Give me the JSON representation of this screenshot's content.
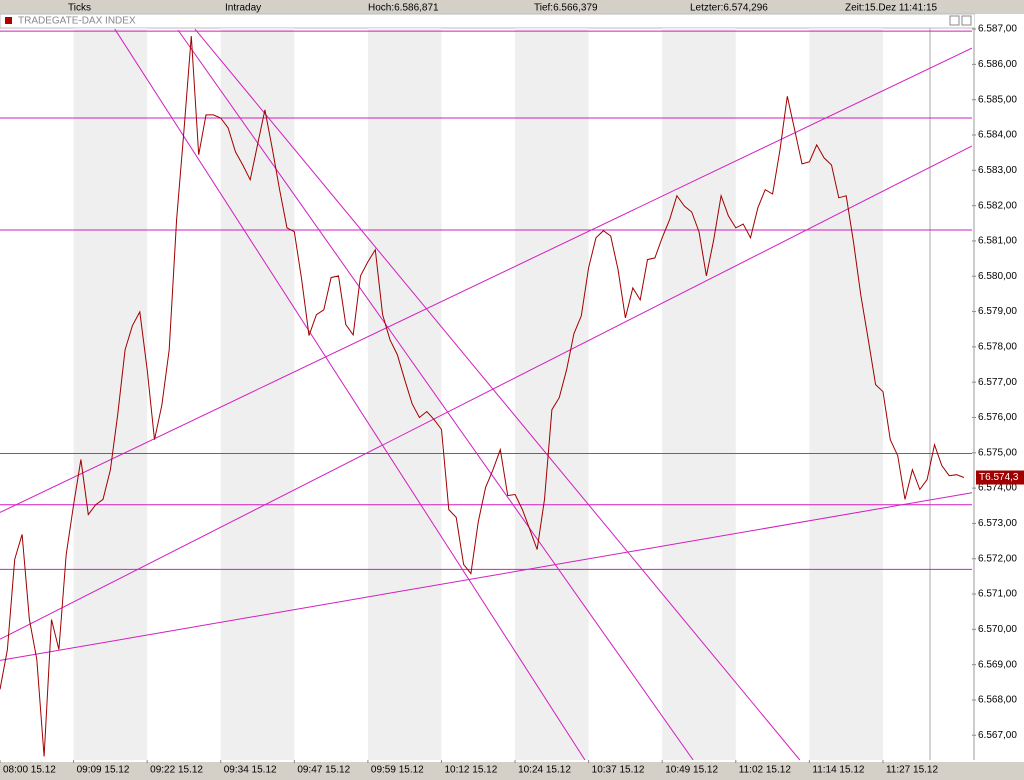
{
  "toolbar": [
    "Ticks",
    "Intraday",
    "Hoch:6.586,871",
    "Tief:6.566,379",
    "Letzter:6.574,296",
    "Zeit:15.Dez 11:41:15"
  ],
  "chart_data": {
    "type": "line",
    "title": "TRADEGATE-DAX INDEX",
    "last_label": "T6.574,3",
    "xlim": [
      0,
      132.1
    ],
    "ylim": [
      6566.3,
      6587.03
    ],
    "xticks": [
      {
        "value": 0,
        "label": "08:00 15.12"
      },
      {
        "value": 10,
        "label": "09:09 15.12"
      },
      {
        "value": 20,
        "label": "09:22 15.12"
      },
      {
        "value": 30,
        "label": "09:34 15.12"
      },
      {
        "value": 40,
        "label": "09:47 15.12"
      },
      {
        "value": 50,
        "label": "09:59 15.12"
      },
      {
        "value": 60,
        "label": "10:12 15.12"
      },
      {
        "value": 70,
        "label": "10:24 15.12"
      },
      {
        "value": 80,
        "label": "10:37 15.12"
      },
      {
        "value": 90,
        "label": "10:49 15.12"
      },
      {
        "value": 100,
        "label": "11:02 15.12"
      },
      {
        "value": 110,
        "label": "11:14 15.12"
      },
      {
        "value": 120,
        "label": "11:27 15.12"
      }
    ],
    "yticks": [
      {
        "value": 6567,
        "label": "6.567,00"
      },
      {
        "value": 6568,
        "label": "6.568,00"
      },
      {
        "value": 6569,
        "label": "6.569,00"
      },
      {
        "value": 6570,
        "label": "6.570,00"
      },
      {
        "value": 6571,
        "label": "6.571,00"
      },
      {
        "value": 6572,
        "label": "6.572,00"
      },
      {
        "value": 6573,
        "label": "6.573,00"
      },
      {
        "value": 6574,
        "label": "6.574,00"
      },
      {
        "value": 6575,
        "label": "6.575,00"
      },
      {
        "value": 6576,
        "label": "6.576,00"
      },
      {
        "value": 6577,
        "label": "6.577,00"
      },
      {
        "value": 6578,
        "label": "6.578,00"
      },
      {
        "value": 6579,
        "label": "6.579,00"
      },
      {
        "value": 6580,
        "label": "6.580,00"
      },
      {
        "value": 6581,
        "label": "6.581,00"
      },
      {
        "value": 6582,
        "label": "6.582,00"
      },
      {
        "value": 6583,
        "label": "6.583,00"
      },
      {
        "value": 6584,
        "label": "6.584,00"
      },
      {
        "value": 6585,
        "label": "6.585,00"
      },
      {
        "value": 6586,
        "label": "6.586,00"
      },
      {
        "value": 6587,
        "label": "6.587,00"
      }
    ],
    "x": [
      0,
      1,
      2,
      3,
      4,
      5,
      6,
      7,
      8,
      9,
      10,
      11,
      12,
      13,
      14,
      15,
      16,
      17,
      18,
      19,
      20,
      21,
      22,
      23,
      24,
      25,
      26,
      27,
      28,
      29,
      30,
      31,
      32,
      33,
      34,
      35,
      36,
      37,
      38,
      39,
      40,
      41,
      42,
      43,
      44,
      45,
      46,
      47,
      48,
      49,
      50,
      51,
      52,
      53,
      54,
      55,
      56,
      57,
      58,
      59,
      60,
      61,
      62,
      63,
      64,
      65,
      66,
      67,
      68,
      69,
      70,
      71,
      72,
      73,
      74,
      75,
      76,
      77,
      78,
      79,
      80,
      81,
      82,
      83,
      84,
      85,
      86,
      87,
      88,
      89,
      90,
      91,
      92,
      93,
      94,
      95,
      96,
      97,
      98,
      99,
      100,
      101,
      102,
      103,
      104,
      105,
      106,
      107,
      108,
      109,
      110,
      111,
      112,
      113,
      114,
      115,
      116,
      117,
      118,
      119,
      120,
      121,
      122,
      123,
      124,
      125,
      126,
      127,
      128,
      129,
      130,
      131
    ],
    "series": [
      {
        "color": "#a00000",
        "values": [
          6568.3,
          6569.43,
          6571.98,
          6572.69,
          6570.28,
          6569.15,
          6566.4,
          6570.28,
          6569.43,
          6572.12,
          6573.53,
          6574.81,
          6573.25,
          6573.53,
          6573.68,
          6574.52,
          6576.08,
          6577.92,
          6578.6,
          6578.99,
          6577.35,
          6575.37,
          6576.36,
          6577.92,
          6581.6,
          6584.14,
          6586.8,
          6583.44,
          6584.57,
          6584.57,
          6584.48,
          6584.2,
          6583.52,
          6583.15,
          6582.73,
          6583.72,
          6584.71,
          6583.63,
          6582.45,
          6581.37,
          6581.26,
          6579.9,
          6578.32,
          6578.91,
          6579.05,
          6579.96,
          6580.01,
          6578.63,
          6578.34,
          6580.01,
          6580.41,
          6580.75,
          6578.91,
          6578.2,
          6577.78,
          6577.07,
          6576.39,
          6576.0,
          6576.17,
          6575.94,
          6575.66,
          6573.39,
          6573.17,
          6571.84,
          6571.58,
          6573.05,
          6574.02,
          6574.52,
          6575.09,
          6573.79,
          6573.82,
          6573.39,
          6572.83,
          6572.26,
          6573.68,
          6576.22,
          6576.56,
          6577.35,
          6578.37,
          6578.88,
          6580.24,
          6581.09,
          6581.29,
          6581.14,
          6580.18,
          6578.82,
          6579.67,
          6579.33,
          6580.47,
          6580.52,
          6581.09,
          6581.6,
          6582.28,
          6581.99,
          6581.82,
          6581.26,
          6580.01,
          6581.03,
          6582.28,
          6581.71,
          6581.37,
          6581.48,
          6581.09,
          6581.94,
          6582.45,
          6582.33,
          6583.58,
          6585.1,
          6584.14,
          6583.18,
          6583.24,
          6583.72,
          6583.35,
          6583.15,
          6582.22,
          6582.28,
          6580.97,
          6579.45,
          6578.2,
          6576.93,
          6576.73,
          6575.37,
          6574.92,
          6573.68,
          6574.52,
          6573.96,
          6574.24,
          6575.23,
          6574.64,
          6574.35,
          6574.38,
          6574.3
        ]
      }
    ],
    "line_color": "#d21fbf",
    "hlines": [
      6586.94,
      6584.48,
      6581.31,
      6574.98,
      6573.53,
      6571.7
    ],
    "trendlines": [
      {
        "x": [
          15.6,
          79.5
        ],
        "y": [
          6587.0,
          6566.3
        ]
      },
      {
        "x": [
          24.2,
          94.2
        ],
        "y": [
          6586.97,
          6566.3
        ]
      },
      {
        "x": [
          26.5,
          108.7
        ],
        "y": [
          6587.0,
          6566.3
        ]
      },
      {
        "x": [
          0,
          132.1
        ],
        "y": [
          6573.31,
          6586.46
        ]
      },
      {
        "x": [
          0,
          132.1
        ],
        "y": [
          6569.72,
          6583.69
        ]
      },
      {
        "x": [
          0,
          132.1
        ],
        "y": [
          6569.12,
          6573.87
        ]
      }
    ]
  }
}
